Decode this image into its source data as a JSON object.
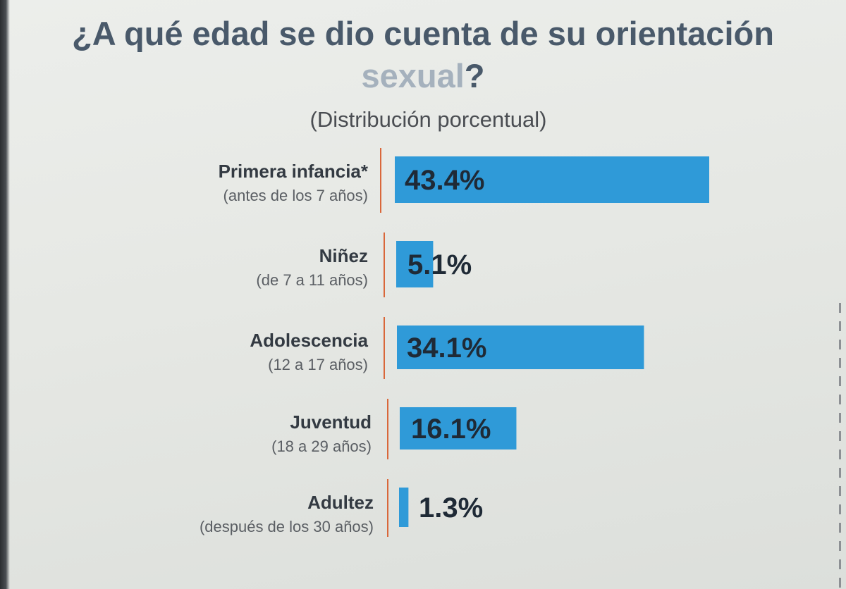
{
  "chart_data": {
    "type": "bar",
    "orientation": "horizontal",
    "title_main": "¿A qué edad se dio cuenta de su orientación",
    "title_end_faded": "sexual",
    "title_end_mark": "?",
    "subtitle": "(Distribución porcentual)",
    "categories": [
      {
        "label": "Primera infancia*",
        "sublabel": "(antes de los 7 años)"
      },
      {
        "label": "Niñez",
        "sublabel": "(de 7 a 11 años)"
      },
      {
        "label": "Adolescencia",
        "sublabel": "(12 a 17 años)"
      },
      {
        "label": "Juventud",
        "sublabel": "(18 a 29 años)"
      },
      {
        "label": "Adultez",
        "sublabel": "(después de los 30 años)"
      }
    ],
    "values": [
      43.4,
      5.1,
      34.1,
      16.1,
      1.3
    ],
    "value_labels": [
      "43.4%",
      "5.1%",
      "34.1%",
      "16.1%",
      "1.3%"
    ],
    "grid": false,
    "legend": "none",
    "colors": {
      "bar": "#2f9ad8",
      "bar_shade": "#2a86c4",
      "axis": "#d9673a",
      "title": "#49596a"
    }
  }
}
